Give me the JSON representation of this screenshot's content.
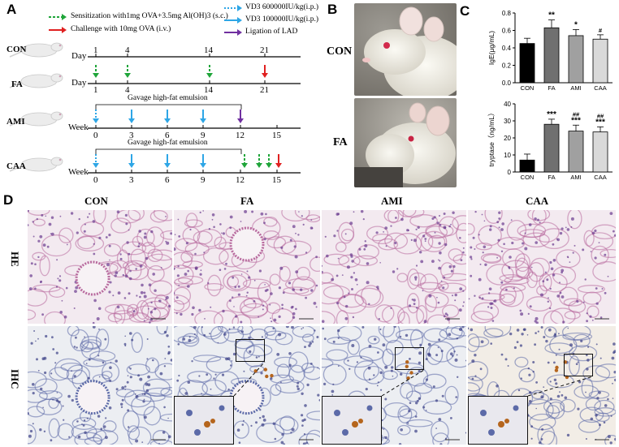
{
  "panels": {
    "A": "A",
    "B": "B",
    "C": "C",
    "D": "D"
  },
  "panel_a": {
    "legend": {
      "sensitization": "Sensitization with1mg OVA+3.5mg Al(OH)3 (s.c.)",
      "challenge": "Challenge with 10mg OVA (i.v.)",
      "vd3_high": "VD3 600000IU/kg(i.p.)",
      "vd3_low": "VD3 100000IU/kg(i.p.)",
      "ligation": "Ligation of LAD"
    },
    "colors": {
      "green": "#1fa53a",
      "red": "#e02020",
      "light_blue": "#2ea6e6",
      "purple": "#7030a0"
    },
    "rows": [
      {
        "label": "CON",
        "unit": "Day",
        "ticks": [
          "1",
          "4",
          "14",
          "21"
        ]
      },
      {
        "label": "FA",
        "unit": "Day",
        "ticks": [
          "1",
          "4",
          "14",
          "21"
        ]
      },
      {
        "label": "AMI",
        "unit": "Week",
        "ticks": [
          "0",
          "3",
          "6",
          "9",
          "12",
          "15"
        ],
        "bracket": "Gavage high-fat emulsion"
      },
      {
        "label": "CAA",
        "unit": "Week",
        "ticks": [
          "0",
          "3",
          "6",
          "9",
          "12",
          "15"
        ],
        "bracket": "Gavage high-fat emulsion"
      }
    ]
  },
  "panel_b": {
    "labels": [
      "CON",
      "FA"
    ]
  },
  "panel_c": {
    "chart_data": [
      {
        "type": "bar",
        "ylabel": "IgE(μg/mL)",
        "categories": [
          "CON",
          "FA",
          "AMI",
          "CAA"
        ],
        "values": [
          0.45,
          0.63,
          0.54,
          0.5
        ],
        "errors": [
          0.06,
          0.09,
          0.07,
          0.05
        ],
        "marks": [
          "",
          "**",
          "*",
          "#"
        ],
        "ylim": [
          0,
          0.8
        ],
        "yticks": [
          "0.0",
          "0.2",
          "0.4",
          "0.6",
          "0.8"
        ],
        "colors": [
          "#000000",
          "#707070",
          "#a0a0a0",
          "#d9d9d9"
        ]
      },
      {
        "type": "bar",
        "ylabel": "tryptase（ng/mL）",
        "categories": [
          "CON",
          "FA",
          "AMI",
          "CAA"
        ],
        "values": [
          7,
          28,
          24,
          23.5
        ],
        "errors": [
          3.5,
          3,
          3.5,
          3
        ],
        "marks": [
          "",
          "***",
          "##\n***",
          "##\n***"
        ],
        "ylim": [
          0,
          40
        ],
        "yticks": [
          "0",
          "10",
          "20",
          "30",
          "40"
        ],
        "colors": [
          "#000000",
          "#707070",
          "#a0a0a0",
          "#d9d9d9"
        ]
      }
    ]
  },
  "panel_d": {
    "columns": [
      "CON",
      "FA",
      "AMI",
      "CAA"
    ],
    "rows": [
      "HE",
      "IHC"
    ]
  }
}
